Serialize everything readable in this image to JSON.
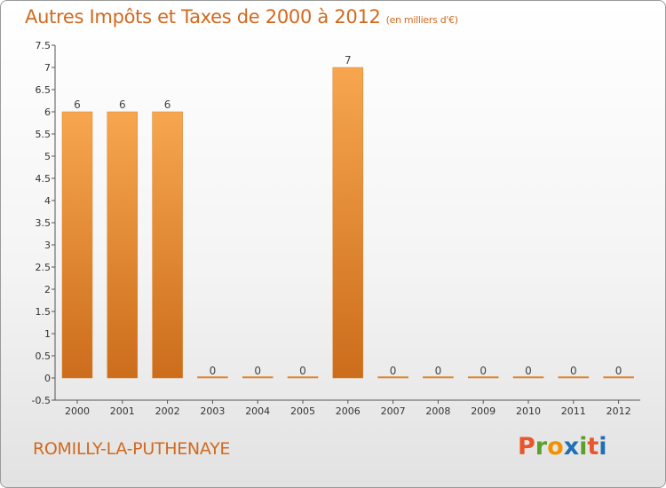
{
  "header": {
    "title": "Autres Impôts et Taxes de 2000 à 2012",
    "subtitle": "(en milliers d'€)"
  },
  "footer": {
    "commune": "ROMILLY-LA-PUTHENAYE",
    "logo_letters": [
      "P",
      "r",
      "o",
      "x",
      "i",
      "t",
      "i"
    ],
    "logo_colors": [
      "#e8562a",
      "#5aa02c",
      "#f29200",
      "#1f6fb5",
      "#5aa02c",
      "#e8562a",
      "#1f6fb5"
    ]
  },
  "colors": {
    "bar_light": "#f7a64f",
    "bar_dark": "#cc6d1c",
    "accent": "#d2691e"
  },
  "chart_data": {
    "type": "bar",
    "categories": [
      "2000",
      "2001",
      "2002",
      "2003",
      "2004",
      "2005",
      "2006",
      "2007",
      "2008",
      "2009",
      "2010",
      "2011",
      "2012"
    ],
    "values": [
      6,
      6,
      6,
      0,
      0,
      0,
      7,
      0,
      0,
      0,
      0,
      0,
      0
    ],
    "data_labels": [
      "6",
      "6",
      "6",
      "0",
      "0",
      "0",
      "7",
      "0",
      "0",
      "0",
      "0",
      "0",
      "0"
    ],
    "yticks": [
      "-0.5",
      "0",
      "0.5",
      "1",
      "1.5",
      "2",
      "2.5",
      "3",
      "3.5",
      "4",
      "4.5",
      "5",
      "5.5",
      "6",
      "6.5",
      "7",
      "7.5"
    ],
    "ylim": [
      -0.5,
      7.5
    ],
    "grid": false,
    "title": "Autres Impôts et Taxes de 2000 à 2012",
    "xlabel": "",
    "ylabel": ""
  }
}
